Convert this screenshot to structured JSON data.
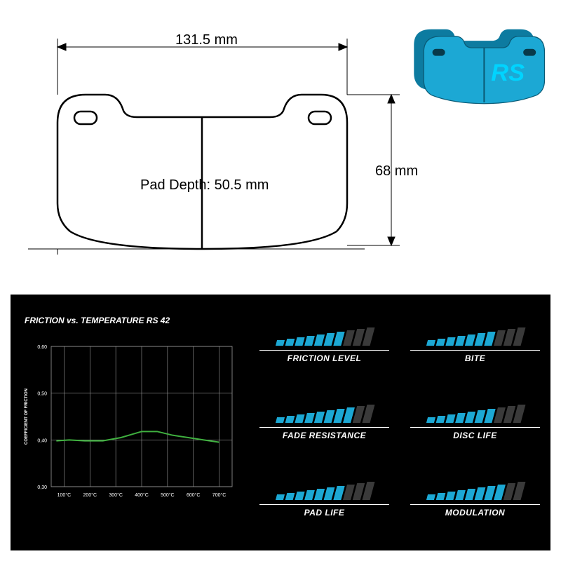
{
  "dimensions": {
    "width_label": "131.5 mm",
    "height_label": "68 mm",
    "depth_label": "Pad Depth: 50.5 mm"
  },
  "drawing": {
    "stroke": "#000000",
    "stroke_width": 2.5,
    "dim_line_width": 1
  },
  "product_icon": {
    "pad_color": "#1ca8d4",
    "back_color": "#0d7ba0",
    "logo_text": "RS",
    "logo_color": "#00bfff"
  },
  "chart": {
    "title": "FRICTION vs. TEMPERATURE RS 42",
    "type": "line",
    "y_label": "COEFFICIENT OF FRICTION",
    "y_ticks": [
      "0,30",
      "0,40",
      "0,50",
      "0,60"
    ],
    "y_values": [
      0.3,
      0.4,
      0.5,
      0.6
    ],
    "ylim": [
      0.3,
      0.6
    ],
    "x_ticks": [
      "100°C",
      "200°C",
      "300°C",
      "400°C",
      "500°C",
      "600°C",
      "700°C"
    ],
    "x_values": [
      100,
      200,
      300,
      400,
      500,
      600,
      700
    ],
    "xlim": [
      50,
      750
    ],
    "line_color": "#3fb03f",
    "line_width": 2,
    "grid_color": "#9a9a9a",
    "axis_color": "#ffffff",
    "background_color": "#000000",
    "tick_fontsize": 7,
    "title_fontsize": 12,
    "data": [
      {
        "x": 70,
        "y": 0.398
      },
      {
        "x": 120,
        "y": 0.4
      },
      {
        "x": 180,
        "y": 0.398
      },
      {
        "x": 250,
        "y": 0.398
      },
      {
        "x": 320,
        "y": 0.405
      },
      {
        "x": 400,
        "y": 0.418
      },
      {
        "x": 460,
        "y": 0.418
      },
      {
        "x": 520,
        "y": 0.41
      },
      {
        "x": 580,
        "y": 0.405
      },
      {
        "x": 640,
        "y": 0.4
      },
      {
        "x": 700,
        "y": 0.395
      }
    ]
  },
  "ratings": {
    "max_bars": 10,
    "bar_color_filled": "#1ca8d4",
    "bar_color_empty": "#3a3a3a",
    "bar_heights": [
      8,
      10,
      12,
      14,
      16,
      18,
      20,
      22,
      24,
      26
    ],
    "items": [
      {
        "label": "FRICTION LEVEL",
        "value": 7
      },
      {
        "label": "BITE",
        "value": 7
      },
      {
        "label": "FADE RESISTANCE",
        "value": 8
      },
      {
        "label": "DISC LIFE",
        "value": 7
      },
      {
        "label": "PAD LIFE",
        "value": 7
      },
      {
        "label": "MODULATION",
        "value": 8
      }
    ]
  }
}
